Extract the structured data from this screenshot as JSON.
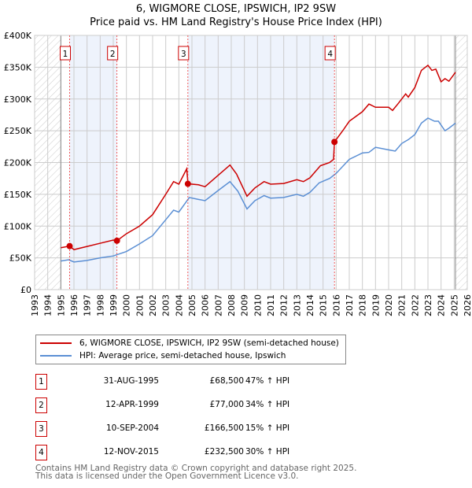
{
  "chart_data": {
    "type": "line",
    "title": "6, WIGMORE CLOSE, IPSWICH, IP2 9SW",
    "subtitle": "Price paid vs. HM Land Registry's House Price Index (HPI)",
    "xlim": [
      1993,
      2026
    ],
    "ylim": [
      0,
      400000
    ],
    "x_ticks": [
      "1993",
      "1994",
      "1995",
      "1996",
      "1997",
      "1998",
      "1999",
      "2000",
      "2001",
      "2002",
      "2003",
      "2004",
      "2005",
      "2006",
      "2007",
      "2008",
      "2009",
      "2010",
      "2011",
      "2012",
      "2013",
      "2014",
      "2015",
      "2016",
      "2017",
      "2018",
      "2019",
      "2020",
      "2021",
      "2022",
      "2023",
      "2024",
      "2025",
      "2026"
    ],
    "y_ticks": [
      {
        "v": 0,
        "label": "£0"
      },
      {
        "v": 50000,
        "label": "£50K"
      },
      {
        "v": 100000,
        "label": "£100K"
      },
      {
        "v": 150000,
        "label": "£150K"
      },
      {
        "v": 200000,
        "label": "£200K"
      },
      {
        "v": 250000,
        "label": "£250K"
      },
      {
        "v": 300000,
        "label": "£300K"
      },
      {
        "v": 350000,
        "label": "£350K"
      },
      {
        "v": 400000,
        "label": "£400K"
      }
    ],
    "grid": true,
    "data_range": [
      1995,
      2025.1
    ],
    "series": [
      {
        "name": "6, WIGMORE CLOSE, IPSWICH, IP2 9SW (semi-detached house)",
        "color": "#cc0000",
        "points": [
          [
            1995,
            66
          ],
          [
            1995.67,
            68.5
          ],
          [
            1996,
            63
          ],
          [
            1997,
            68
          ],
          [
            1998,
            73
          ],
          [
            1999,
            78
          ],
          [
            1999.28,
            77
          ],
          [
            2000,
            88
          ],
          [
            2001,
            100
          ],
          [
            2002,
            118
          ],
          [
            2003,
            150
          ],
          [
            2003.6,
            170
          ],
          [
            2004,
            166
          ],
          [
            2004.6,
            190
          ],
          [
            2004.7,
            166.5
          ],
          [
            2005.5,
            165
          ],
          [
            2006,
            162
          ],
          [
            2007,
            180
          ],
          [
            2007.9,
            196
          ],
          [
            2008.4,
            182
          ],
          [
            2009.2,
            147
          ],
          [
            2009.8,
            160
          ],
          [
            2010.5,
            170
          ],
          [
            2011,
            166
          ],
          [
            2012,
            167
          ],
          [
            2013,
            173
          ],
          [
            2013.5,
            170
          ],
          [
            2014,
            176
          ],
          [
            2014.8,
            195
          ],
          [
            2015.5,
            200
          ],
          [
            2015.8,
            205
          ],
          [
            2015.87,
            232.5
          ],
          [
            2016.5,
            250
          ],
          [
            2017,
            265
          ],
          [
            2018,
            280
          ],
          [
            2018.5,
            292
          ],
          [
            2019,
            287
          ],
          [
            2020,
            287
          ],
          [
            2020.3,
            282
          ],
          [
            2020.7,
            292
          ],
          [
            2021.3,
            308
          ],
          [
            2021.5,
            303
          ],
          [
            2022,
            318
          ],
          [
            2022.5,
            345
          ],
          [
            2023,
            353
          ],
          [
            2023.3,
            345
          ],
          [
            2023.6,
            347
          ],
          [
            2024,
            327
          ],
          [
            2024.3,
            332
          ],
          [
            2024.6,
            328
          ],
          [
            2025.1,
            342
          ]
        ]
      },
      {
        "name": "HPI: Average price, semi-detached house, Ipswich",
        "color": "#5b8fd4",
        "points": [
          [
            1995,
            45
          ],
          [
            1995.6,
            47
          ],
          [
            1996,
            43.5
          ],
          [
            1997,
            46
          ],
          [
            1998,
            50
          ],
          [
            1999,
            53
          ],
          [
            2000,
            60
          ],
          [
            2001,
            72
          ],
          [
            2002,
            85
          ],
          [
            2003,
            110
          ],
          [
            2003.6,
            125
          ],
          [
            2004,
            122
          ],
          [
            2004.8,
            145
          ],
          [
            2005.5,
            142
          ],
          [
            2006,
            140
          ],
          [
            2007,
            156
          ],
          [
            2007.9,
            170
          ],
          [
            2008.5,
            155
          ],
          [
            2009.2,
            127
          ],
          [
            2009.8,
            140
          ],
          [
            2010.5,
            148
          ],
          [
            2011,
            144
          ],
          [
            2012,
            145
          ],
          [
            2013,
            150
          ],
          [
            2013.5,
            147
          ],
          [
            2014,
            153
          ],
          [
            2014.7,
            168
          ],
          [
            2015.5,
            175
          ],
          [
            2016,
            183
          ],
          [
            2017,
            205
          ],
          [
            2018,
            215
          ],
          [
            2018.5,
            216
          ],
          [
            2019,
            224
          ],
          [
            2020,
            220
          ],
          [
            2020.5,
            218
          ],
          [
            2021,
            230
          ],
          [
            2021.5,
            236
          ],
          [
            2022,
            244
          ],
          [
            2022.5,
            262
          ],
          [
            2023,
            270
          ],
          [
            2023.5,
            265
          ],
          [
            2023.8,
            265
          ],
          [
            2024.3,
            250
          ],
          [
            2024.6,
            254
          ],
          [
            2025.1,
            262
          ]
        ]
      }
    ],
    "sales": [
      {
        "n": "1",
        "x": 1995.67,
        "y": 68500,
        "date": "31-AUG-1995",
        "price": "£68,500",
        "hpi": "47% ↑ HPI"
      },
      {
        "n": "2",
        "x": 1999.28,
        "y": 77000,
        "date": "12-APR-1999",
        "price": "£77,000",
        "hpi": "34% ↑ HPI"
      },
      {
        "n": "3",
        "x": 2004.69,
        "y": 166500,
        "date": "10-SEP-2004",
        "price": "£166,500",
        "hpi": "15% ↑ HPI"
      },
      {
        "n": "4",
        "x": 2015.87,
        "y": 232500,
        "date": "12-NOV-2015",
        "price": "£232,500",
        "hpi": "30% ↑ HPI"
      }
    ]
  },
  "legend": {
    "property": "6, WIGMORE CLOSE, IPSWICH, IP2 9SW (semi-detached house)",
    "hpi": "HPI: Average price, semi-detached house, Ipswich"
  },
  "footer": {
    "line1": "Contains HM Land Registry data © Crown copyright and database right 2025.",
    "line2": "This data is licensed under the Open Government Licence v3.0."
  }
}
